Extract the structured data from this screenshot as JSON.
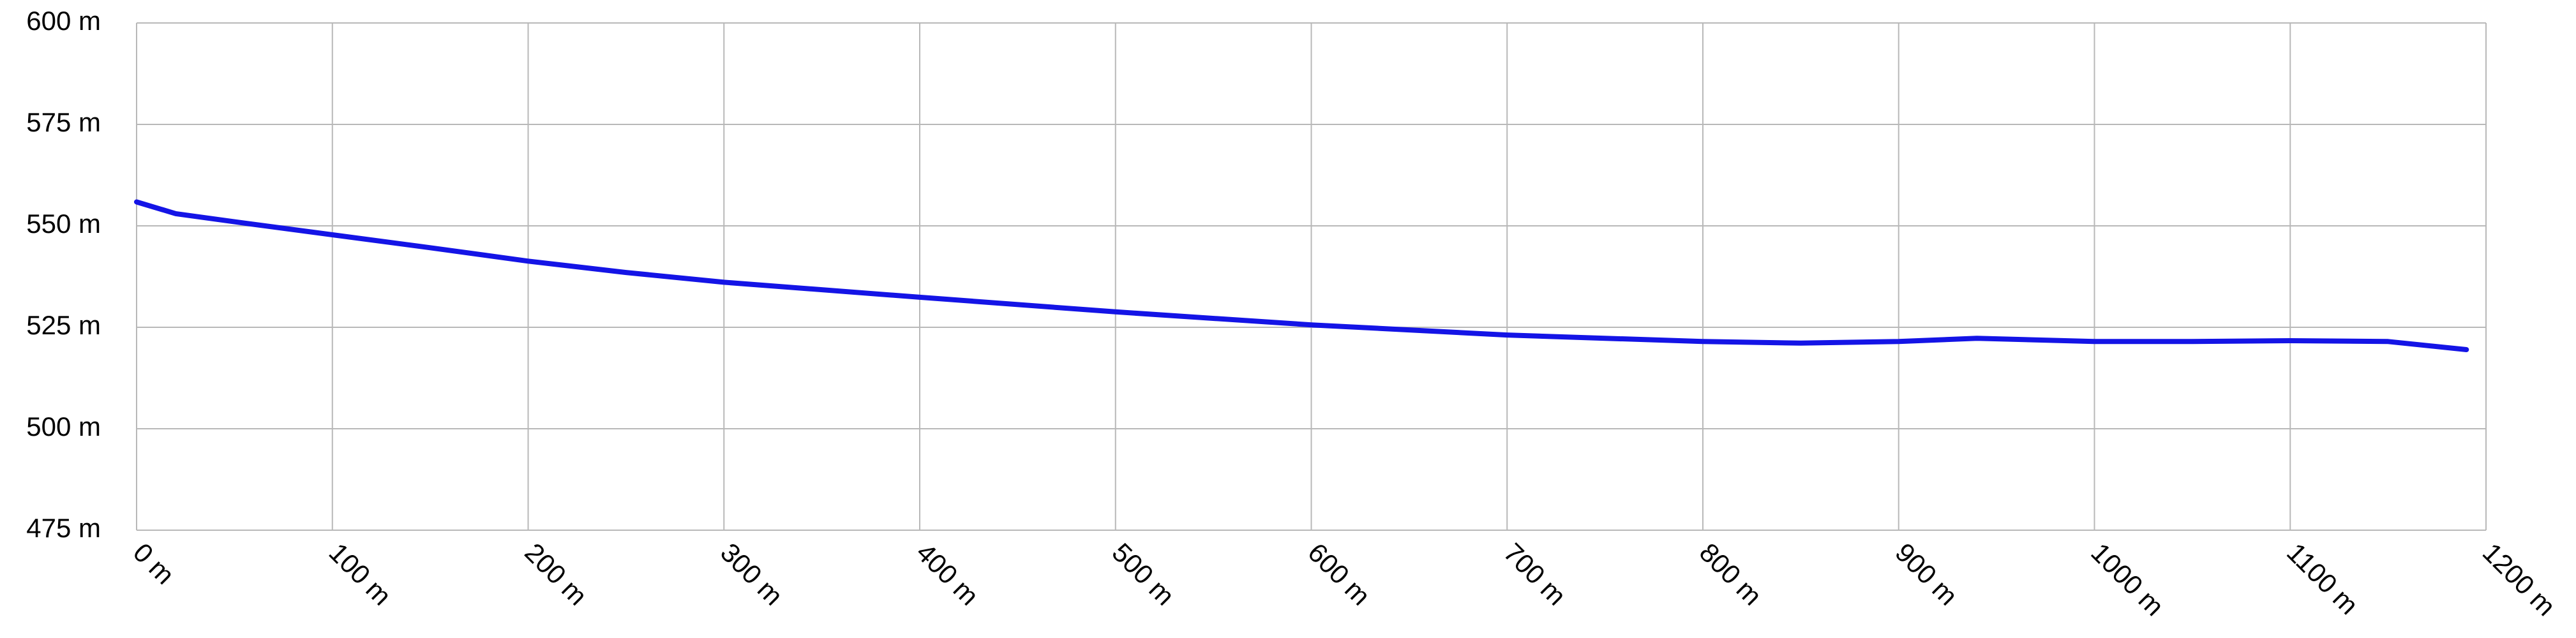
{
  "chart_data": {
    "type": "line",
    "x": [
      0,
      20,
      50,
      100,
      150,
      200,
      250,
      300,
      400,
      500,
      600,
      700,
      800,
      850,
      900,
      940,
      1000,
      1050,
      1100,
      1150,
      1190
    ],
    "values": [
      555.9,
      553,
      551,
      547.8,
      544.6,
      541.3,
      538.5,
      536.1,
      532.4,
      528.8,
      525.6,
      523.1,
      521.5,
      521.1,
      521.5,
      522.3,
      521.5,
      521.5,
      521.7,
      521.5,
      519.5
    ],
    "color": "#1414e6",
    "xlim": [
      0,
      1200
    ],
    "xticks": [
      {
        "value": 0,
        "label": "0 m"
      },
      {
        "value": 100,
        "label": "100 m"
      },
      {
        "value": 200,
        "label": "200 m"
      },
      {
        "value": 300,
        "label": "300 m"
      },
      {
        "value": 400,
        "label": "400 m"
      },
      {
        "value": 500,
        "label": "500 m"
      },
      {
        "value": 600,
        "label": "600 m"
      },
      {
        "value": 700,
        "label": "700 m"
      },
      {
        "value": 800,
        "label": "800 m"
      },
      {
        "value": 900,
        "label": "900 m"
      },
      {
        "value": 1000,
        "label": "1000 m"
      },
      {
        "value": 1100,
        "label": "1100 m"
      },
      {
        "value": 1200,
        "label": "1200 m"
      }
    ],
    "ylim": [
      475,
      600
    ],
    "yticks": [
      {
        "value": 475,
        "label": "475 m"
      },
      {
        "value": 500,
        "label": "500 m"
      },
      {
        "value": 525,
        "label": "525 m"
      },
      {
        "value": 550,
        "label": "550 m"
      },
      {
        "value": 575,
        "label": "575 m"
      },
      {
        "value": 600,
        "label": "600 m"
      }
    ],
    "grid": true
  }
}
